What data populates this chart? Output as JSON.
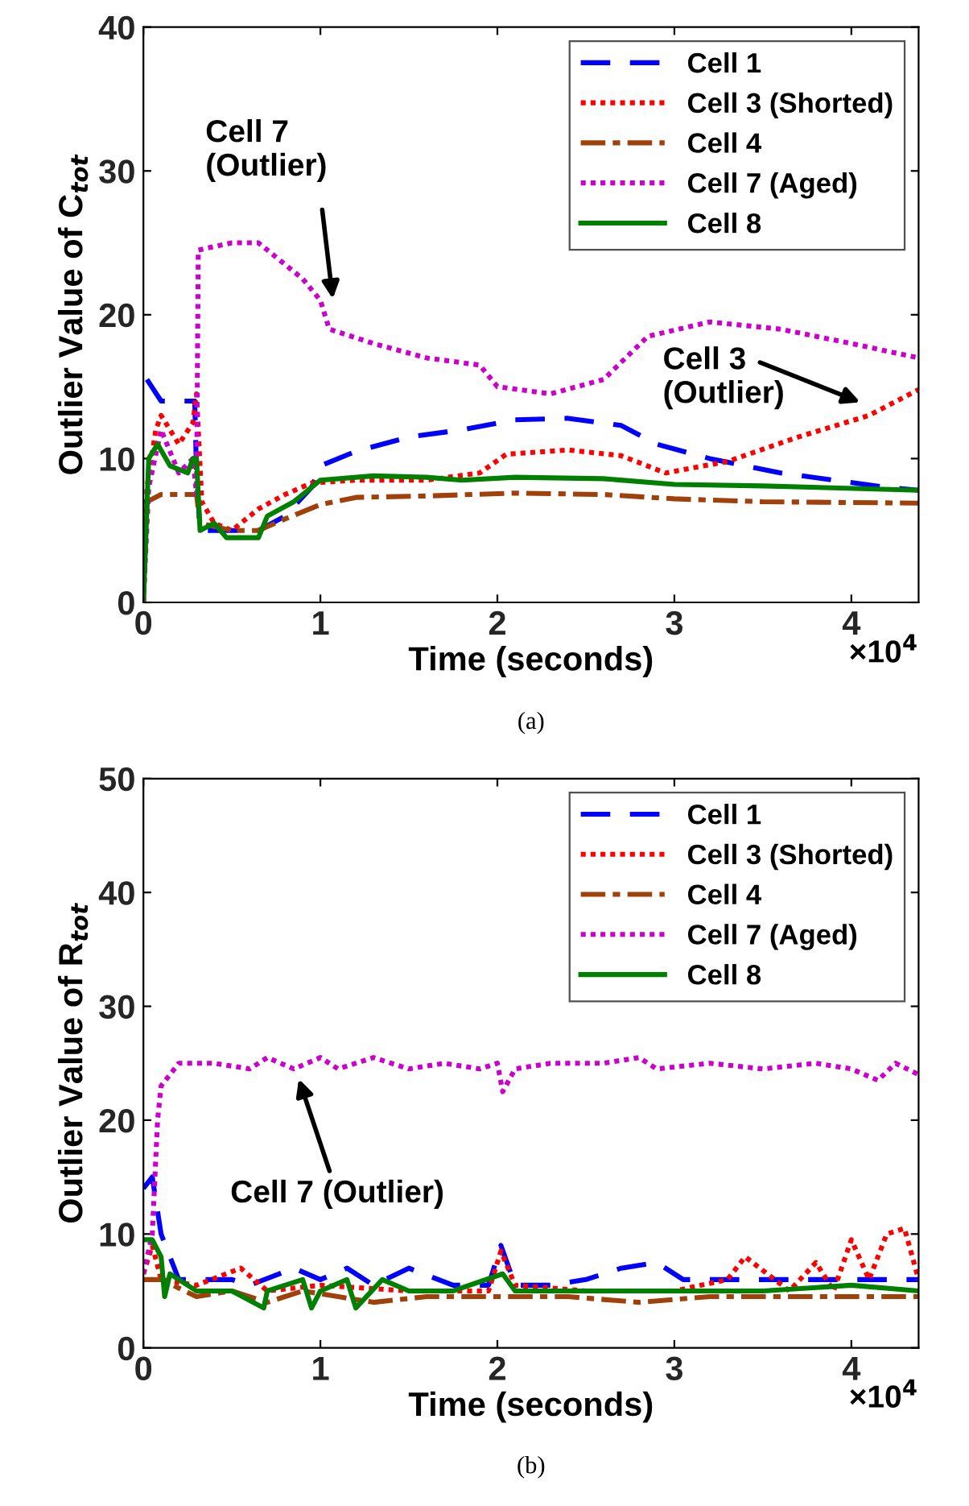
{
  "chart_data": [
    {
      "type": "line",
      "xlabel": "Time (seconds)",
      "ylabel": "Outlier Value of C$_{tot}$",
      "xlim": [
        0,
        4.38
      ],
      "ylim": [
        0,
        40
      ],
      "xticks": [
        0,
        1,
        2,
        3,
        4
      ],
      "yticks": [
        0,
        10,
        20,
        30,
        40
      ],
      "grid": false,
      "legend": "top right",
      "annotations": [
        "Cell 7\n(Outlier)",
        "Cell 3\n(Outlier)",
        "×10$^{4}$",
        "(a)"
      ],
      "series": [
        {
          "name": "Cell 1",
          "color": "#0000ff",
          "line_style": "dashed",
          "x": [
            0.02,
            0.1,
            0.2,
            0.29,
            0.3,
            0.32,
            0.5,
            0.65,
            0.8,
            0.95,
            1.0,
            1.2,
            1.5,
            1.8,
            2.1,
            2.4,
            2.7,
            2.9,
            3.2,
            3.6,
            3.9,
            4.2,
            4.38
          ],
          "values": [
            15.5,
            14,
            14,
            14,
            9,
            5,
            5,
            5,
            6,
            8,
            9.5,
            10.5,
            11.5,
            12,
            12.7,
            12.8,
            12.3,
            11,
            10,
            9,
            8.5,
            8,
            7.8
          ]
        },
        {
          "name": "Cell 3 (Shorted)",
          "color": "#ff0000",
          "line_style": "dotted",
          "x": [
            0,
            0.02,
            0.07,
            0.1,
            0.2,
            0.28,
            0.3,
            0.33,
            0.4,
            0.5,
            0.65,
            0.8,
            0.95,
            1.2,
            1.6,
            1.9,
            2.05,
            2.4,
            2.7,
            2.95,
            3.3,
            3.7,
            4.1,
            4.38
          ],
          "values": [
            0,
            8,
            12,
            13,
            11,
            12.5,
            14.5,
            7,
            5.5,
            5,
            6.5,
            7.5,
            8.3,
            8.5,
            8.5,
            9,
            10.3,
            10.6,
            10.2,
            9,
            9.8,
            11.5,
            13,
            14.8
          ]
        },
        {
          "name": "Cell 4",
          "color": "#a0400a",
          "line_style": "dashdot",
          "x": [
            0,
            0.02,
            0.1,
            0.3,
            0.32,
            0.5,
            0.65,
            0.8,
            1.0,
            1.2,
            1.6,
            2.1,
            2.6,
            3.0,
            3.5,
            4.38
          ],
          "values": [
            0,
            7,
            7.5,
            7.5,
            5.5,
            5,
            5,
            5.8,
            6.8,
            7.3,
            7.4,
            7.6,
            7.5,
            7.2,
            7,
            6.9
          ]
        },
        {
          "name": "Cell 7 (Aged)",
          "color": "#cc00cc",
          "line_style": "dotted",
          "x": [
            0,
            0.03,
            0.1,
            0.2,
            0.28,
            0.3,
            0.31,
            0.5,
            0.65,
            0.75,
            0.9,
            1.0,
            1.05,
            1.3,
            1.6,
            1.9,
            2.0,
            2.3,
            2.6,
            2.85,
            3.2,
            3.6,
            4.0,
            4.38
          ],
          "values": [
            0,
            8,
            12,
            9,
            10,
            7.5,
            24.5,
            25,
            25,
            24,
            22.5,
            21,
            19,
            18,
            17,
            16.5,
            15,
            14.5,
            15.5,
            18.5,
            19.5,
            19,
            18,
            17
          ]
        },
        {
          "name": "Cell 8",
          "color": "#008000",
          "line_style": "solid",
          "x": [
            0,
            0.03,
            0.08,
            0.15,
            0.25,
            0.28,
            0.3,
            0.32,
            0.4,
            0.47,
            0.65,
            0.7,
            0.85,
            0.9,
            1.0,
            1.3,
            1.6,
            1.8,
            2.1,
            2.6,
            3.0,
            3.5,
            4.38
          ],
          "values": [
            0,
            10,
            11,
            9.5,
            9,
            10,
            10,
            5,
            5.5,
            4.5,
            4.5,
            6,
            7,
            7.5,
            8.5,
            8.8,
            8.7,
            8.5,
            8.7,
            8.6,
            8.2,
            8.1,
            7.8
          ]
        }
      ]
    },
    {
      "type": "line",
      "xlabel": "Time (seconds)",
      "ylabel": "Outlier Value of R$_{tot}$",
      "xlim": [
        0,
        4.38
      ],
      "ylim": [
        0,
        50
      ],
      "xticks": [
        0,
        1,
        2,
        3,
        4
      ],
      "yticks": [
        0,
        10,
        20,
        30,
        40,
        50
      ],
      "grid": false,
      "legend": "top right",
      "annotations": [
        {
          "text": "Cell 7 (Outlier)",
          "x": 0.87,
          "y": 24
        },
        "×10$^{4}$",
        "(b)"
      ],
      "series": [
        {
          "name": "Cell 1",
          "color": "#0000ff",
          "line_style": "dashed",
          "x": [
            0,
            0.05,
            0.1,
            0.2,
            0.3,
            0.5,
            0.6,
            0.85,
            1.0,
            1.15,
            1.3,
            1.5,
            1.75,
            1.95,
            2.02,
            2.1,
            2.3,
            2.5,
            2.7,
            2.9,
            3.05,
            3.3,
            3.6,
            4.0,
            4.38
          ],
          "values": [
            14,
            15,
            10,
            6,
            6,
            6,
            5.5,
            7,
            6,
            7,
            5.5,
            7,
            5.5,
            5.5,
            9,
            5.5,
            5.5,
            6,
            7,
            7.5,
            6,
            6,
            6,
            6,
            6
          ]
        },
        {
          "name": "Cell 3 (Shorted)",
          "color": "#ff0000",
          "line_style": "dotted",
          "x": [
            0,
            0.05,
            0.1,
            0.3,
            0.55,
            0.7,
            1.0,
            1.5,
            1.95,
            2.02,
            2.1,
            2.5,
            3.0,
            3.3,
            3.4,
            3.65,
            3.8,
            3.9,
            4.0,
            4.1,
            4.2,
            4.3,
            4.38
          ],
          "values": [
            6.5,
            9,
            6,
            5.5,
            7,
            5,
            5.5,
            5,
            5,
            8.5,
            5.5,
            5,
            5,
            6,
            8,
            5,
            7.5,
            5,
            9.5,
            6,
            10,
            10.5,
            6
          ]
        },
        {
          "name": "Cell 4",
          "color": "#a0400a",
          "line_style": "dashdot",
          "x": [
            0,
            0.1,
            0.3,
            0.5,
            0.7,
            0.9,
            1.1,
            1.3,
            1.6,
            2.0,
            2.4,
            2.8,
            3.2,
            3.6,
            4.0,
            4.38
          ],
          "values": [
            6,
            6,
            4.5,
            5,
            4,
            5,
            4.5,
            4,
            4.5,
            4.5,
            4.5,
            4,
            4.5,
            4.5,
            4.5,
            4.5
          ]
        },
        {
          "name": "Cell 7 (Aged)",
          "color": "#cc00cc",
          "line_style": "dotted",
          "x": [
            0,
            0.05,
            0.08,
            0.1,
            0.2,
            0.4,
            0.6,
            0.7,
            0.85,
            1.0,
            1.1,
            1.3,
            1.5,
            1.7,
            1.9,
            2.0,
            2.03,
            2.1,
            2.3,
            2.6,
            2.8,
            2.9,
            3.2,
            3.5,
            3.8,
            4.0,
            4.15,
            4.25,
            4.38
          ],
          "values": [
            6.5,
            10,
            20,
            23,
            25,
            25,
            24.5,
            25.5,
            24.5,
            25.5,
            24.5,
            25.5,
            24.5,
            25,
            24.5,
            25,
            22.5,
            24.5,
            25,
            25,
            25.5,
            24.5,
            25,
            24.5,
            25,
            24.5,
            23.5,
            25,
            24
          ]
        },
        {
          "name": "Cell 8",
          "color": "#008000",
          "line_style": "solid",
          "x": [
            0,
            0.05,
            0.1,
            0.12,
            0.15,
            0.3,
            0.5,
            0.68,
            0.7,
            0.9,
            0.95,
            1.0,
            1.15,
            1.2,
            1.35,
            1.5,
            1.75,
            2.03,
            2.1,
            2.5,
            2.9,
            3.0,
            3.5,
            4.0,
            4.38
          ],
          "values": [
            9.5,
            9.5,
            8,
            4.5,
            6.5,
            5,
            5,
            3.5,
            5,
            6,
            3.5,
            5,
            6,
            3.5,
            6,
            5,
            5,
            6.5,
            5,
            5,
            5,
            5,
            5,
            5.5,
            5
          ]
        }
      ]
    }
  ]
}
